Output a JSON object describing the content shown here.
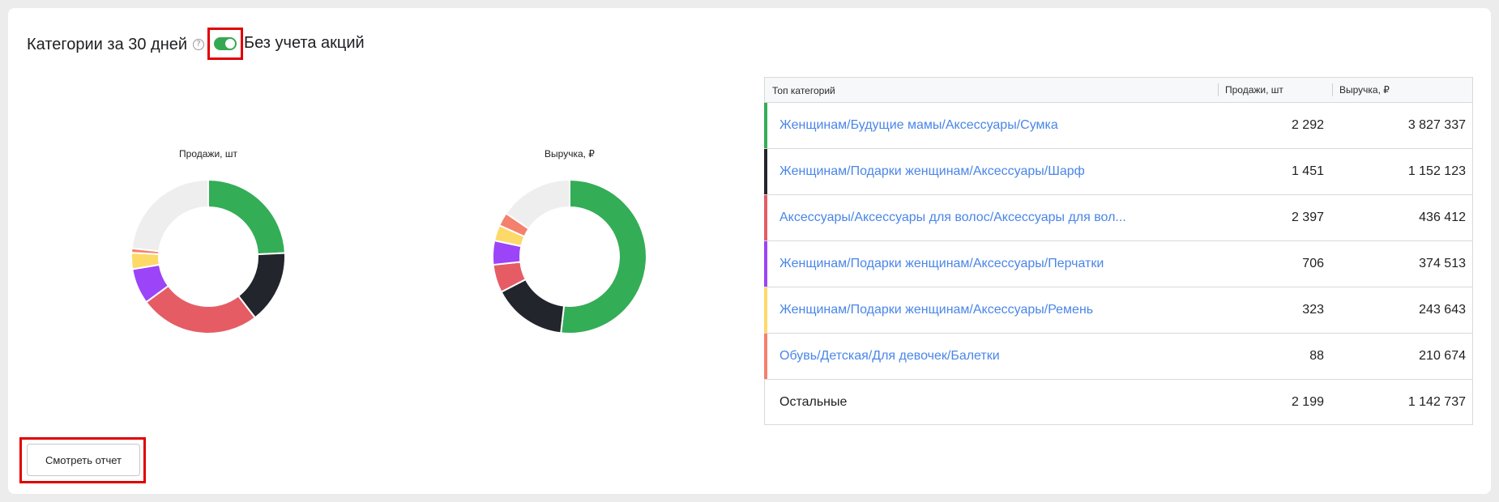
{
  "header": {
    "title": "Категории за 30 дней",
    "help_icon": "?",
    "toggle_on": true,
    "toggle_label": "Без учета акций"
  },
  "colors": {
    "green": "#34ad57",
    "black": "#22252b",
    "red": "#e55c65",
    "purple": "#9b44f8",
    "yellow": "#fdd96a",
    "salmon": "#f4806e",
    "gray": "#eeeeee",
    "link": "#4a86e8"
  },
  "chart_data": [
    {
      "type": "pie",
      "title": "Продажи, шт",
      "categories": [
        "Женщинам/Будущие мамы/Аксессуары/Сумка",
        "Женщинам/Подарки женщинам/Аксессуары/Шарф",
        "Аксессуары/Аксессуары для волос/Аксессуары для вол...",
        "Женщинам/Подарки женщинам/Аксессуары/Перчатки",
        "Женщинам/Подарки женщинам/Аксессуары/Ремень",
        "Обувь/Детская/Для девочек/Балетки",
        "Остальные"
      ],
      "values": [
        2292,
        1451,
        2397,
        706,
        323,
        88,
        2199
      ]
    },
    {
      "type": "pie",
      "title": "Выручка, ₽",
      "categories": [
        "Женщинам/Будущие мамы/Аксессуары/Сумка",
        "Женщинам/Подарки женщинам/Аксессуары/Шарф",
        "Аксессуары/Аксессуары для волос/Аксессуары для вол...",
        "Женщинам/Подарки женщинам/Аксессуары/Перчатки",
        "Женщинам/Подарки женщинам/Аксессуары/Ремень",
        "Обувь/Детская/Для девочек/Балетки",
        "Остальные"
      ],
      "values": [
        3827337,
        1152123,
        436412,
        374513,
        243643,
        210674,
        1142737
      ]
    }
  ],
  "table": {
    "headers": [
      "Топ категорий",
      "Продажи, шт",
      "Выручка, ₽"
    ],
    "rows": [
      {
        "category": "Женщинам/Будущие мамы/Аксессуары/Сумка",
        "sales": "2 292",
        "revenue": "3 827 337",
        "color": "#34ad57"
      },
      {
        "category": "Женщинам/Подарки женщинам/Аксессуары/Шарф",
        "sales": "1 451",
        "revenue": "1 152 123",
        "color": "#22252b"
      },
      {
        "category": "Аксессуары/Аксессуары для волос/Аксессуары для вол...",
        "sales": "2 397",
        "revenue": "436 412",
        "color": "#e55c65"
      },
      {
        "category": "Женщинам/Подарки женщинам/Аксессуары/Перчатки",
        "sales": "706",
        "revenue": "374 513",
        "color": "#9b44f8"
      },
      {
        "category": "Женщинам/Подарки женщинам/Аксессуары/Ремень",
        "sales": "323",
        "revenue": "243 643",
        "color": "#fdd96a"
      },
      {
        "category": "Обувь/Детская/Для девочек/Балетки",
        "sales": "88",
        "revenue": "210 674",
        "color": "#f4806e"
      },
      {
        "category": "Остальные",
        "sales": "2 199",
        "revenue": "1 142 737",
        "color": ""
      }
    ]
  },
  "footer": {
    "report_button": "Смотреть отчет"
  }
}
